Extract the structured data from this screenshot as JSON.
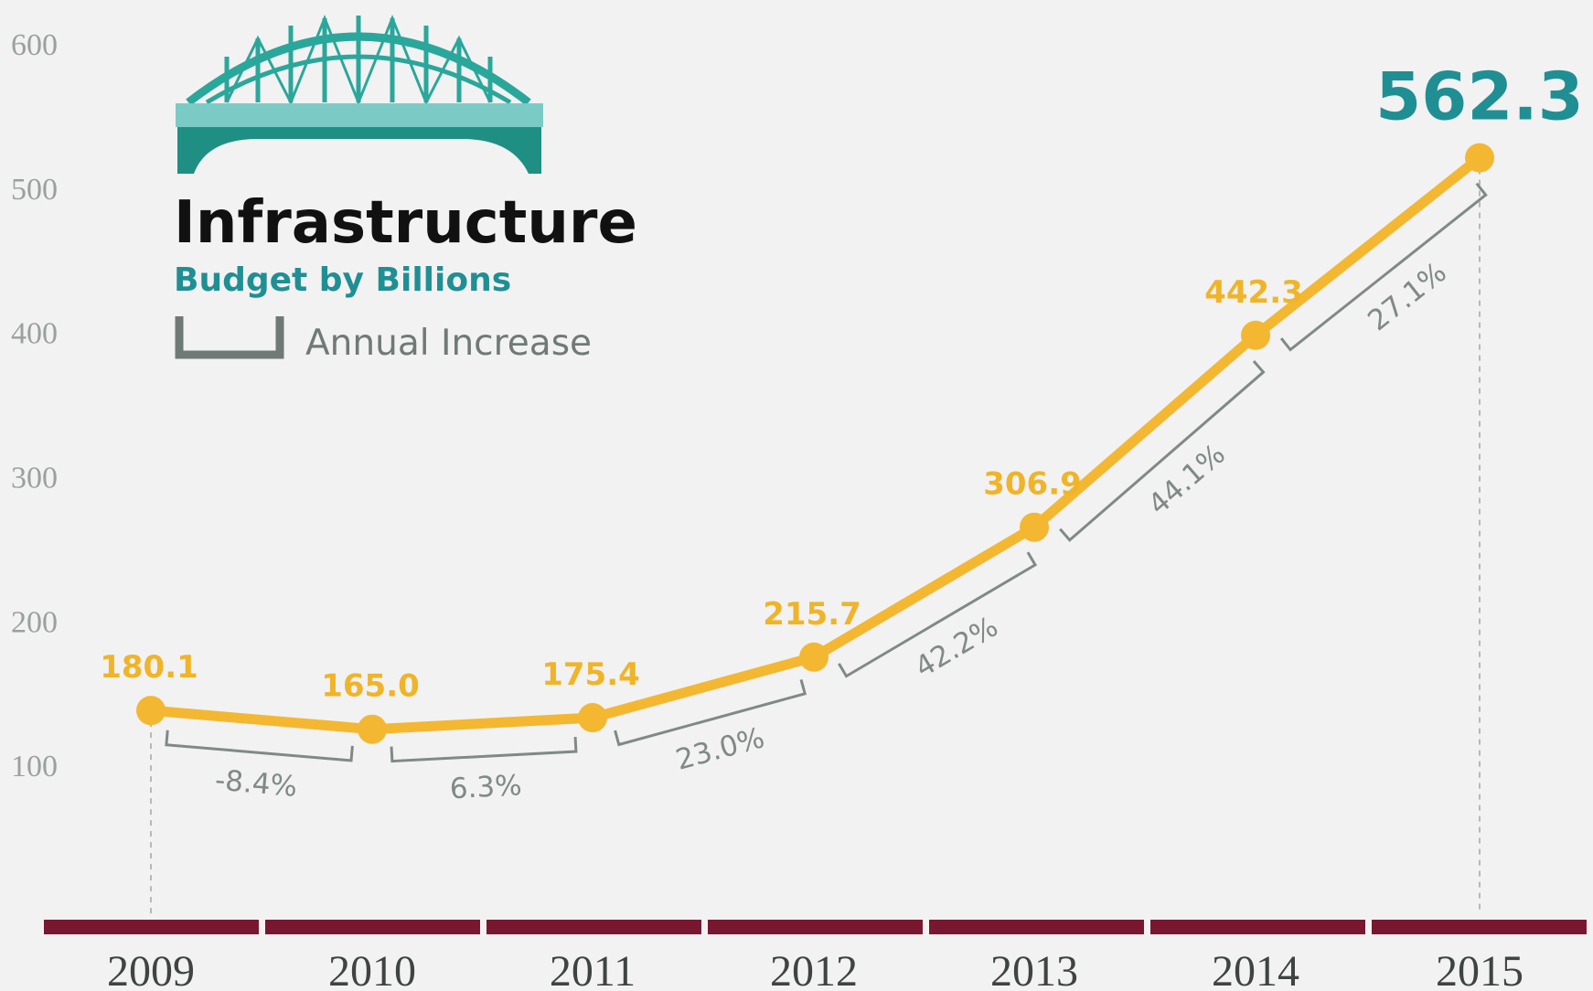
{
  "chart_data": {
    "type": "line",
    "title": "Infrastructure",
    "subtitle": "Budget by Billions",
    "legend_label": "Annual Increase",
    "categories": [
      "2009",
      "2010",
      "2011",
      "2012",
      "2013",
      "2014",
      "2015"
    ],
    "series": [
      {
        "values": [
          180.1,
          165.0,
          175.4,
          215.7,
          306.9,
          442.3,
          562.3
        ],
        "value_labels": [
          "180.1",
          "165.0",
          "175.4",
          "215.7",
          "306.9",
          "442.3",
          "562.3"
        ]
      }
    ],
    "plotted_values": [
      138,
      125,
      133,
      175,
      265,
      398,
      521
    ],
    "annual_increase": [
      "-8.4%",
      "6.3%",
      "23.0%",
      "42.2%",
      "44.1%",
      "27.1%"
    ],
    "y_ticks": [
      100,
      200,
      300,
      400,
      500,
      600
    ],
    "ylim": [
      0,
      600
    ],
    "grid": false,
    "colors": {
      "line": "#f4b731",
      "highlight_label": "#1f8f94",
      "axis_band": "#7a1730",
      "bracket": "#7f8a86",
      "bridge": "#2aa79b"
    }
  }
}
